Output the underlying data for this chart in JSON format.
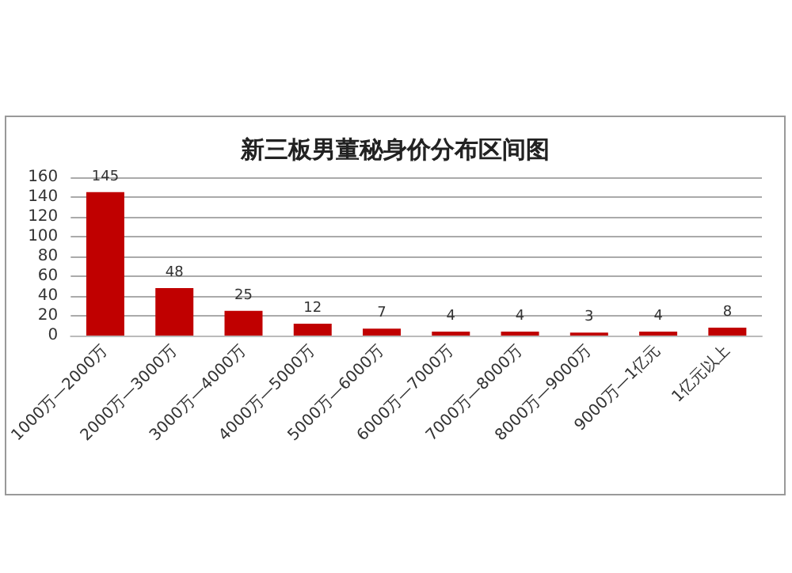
{
  "chart_data": {
    "type": "bar",
    "title": "新三板男董秘身价分布区间图",
    "categories": [
      "1000万—2000万",
      "2000万—3000万",
      "3000万—4000万",
      "4000万—5000万",
      "5000万—6000万",
      "6000万—7000万",
      "7000万—8000万",
      "8000万—9000万",
      "9000万—1亿元",
      "1亿元以上"
    ],
    "values": [
      145,
      48,
      25,
      12,
      7,
      4,
      4,
      3,
      4,
      8
    ],
    "color": "#c00000",
    "ylim": [
      0,
      160
    ],
    "yticks": [
      0,
      20,
      40,
      60,
      80,
      100,
      120,
      140,
      160
    ],
    "grid": "y",
    "data_labels": true
  }
}
